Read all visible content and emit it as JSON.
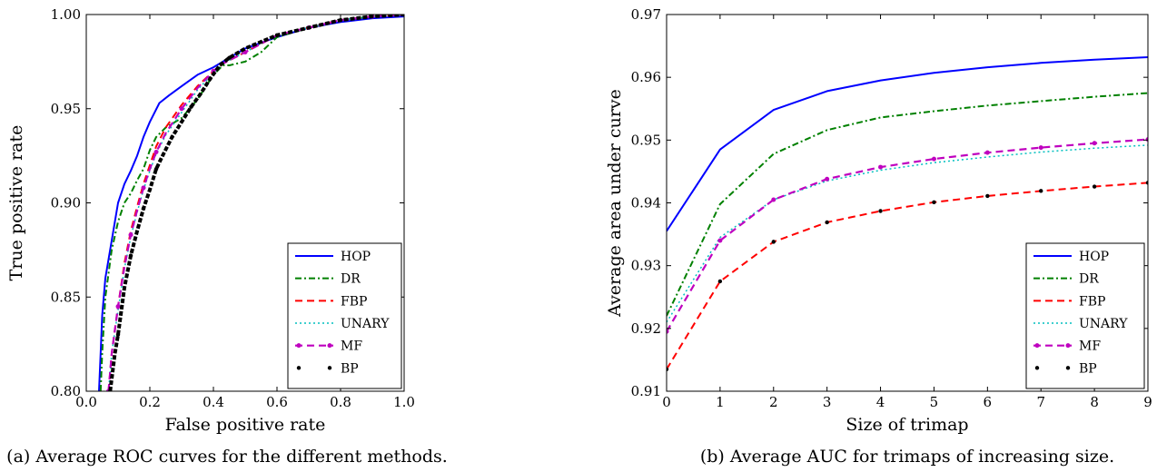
{
  "chart_data": [
    {
      "type": "line",
      "caption": "(a) Average ROC curves for the different methods.",
      "xlabel": "False positive rate",
      "ylabel": "True positive rate",
      "xlim": [
        0.0,
        1.0
      ],
      "ylim": [
        0.8,
        1.0
      ],
      "xticks": [
        "0.0",
        "0.2",
        "0.4",
        "0.6",
        "0.8",
        "1.0"
      ],
      "yticks": [
        "0.80",
        "0.85",
        "0.90",
        "0.95",
        "1.00"
      ],
      "xtick_values": [
        0.0,
        0.2,
        0.4,
        0.6,
        0.8,
        1.0
      ],
      "ytick_values": [
        0.8,
        0.85,
        0.9,
        0.95,
        1.0
      ],
      "legend_position": "lower-right",
      "series": [
        {
          "name": "HOP",
          "color": "#0000ff",
          "style": "solid",
          "x": [
            0.04,
            0.045,
            0.05,
            0.06,
            0.08,
            0.1,
            0.12,
            0.14,
            0.16,
            0.18,
            0.2,
            0.23,
            0.26,
            0.3,
            0.35,
            0.4,
            0.43,
            0.5,
            0.55,
            0.6,
            0.7,
            0.8,
            0.9,
            1.0
          ],
          "y": [
            0.8,
            0.82,
            0.84,
            0.86,
            0.88,
            0.9,
            0.91,
            0.917,
            0.925,
            0.935,
            0.943,
            0.953,
            0.957,
            0.962,
            0.968,
            0.972,
            0.975,
            0.982,
            0.985,
            0.988,
            0.993,
            0.996,
            0.998,
            0.999
          ]
        },
        {
          "name": "DR",
          "color": "#008000",
          "style": "dashdot",
          "x": [
            0.045,
            0.05,
            0.06,
            0.08,
            0.1,
            0.12,
            0.14,
            0.16,
            0.18,
            0.2,
            0.22,
            0.25,
            0.3,
            0.35,
            0.4,
            0.43,
            0.45,
            0.5,
            0.55,
            0.6,
            0.7,
            0.8,
            0.9,
            1.0
          ],
          "y": [
            0.8,
            0.82,
            0.85,
            0.875,
            0.89,
            0.9,
            0.905,
            0.912,
            0.918,
            0.928,
            0.935,
            0.94,
            0.945,
            0.955,
            0.968,
            0.973,
            0.973,
            0.975,
            0.98,
            0.988,
            0.993,
            0.997,
            0.999,
            1.0
          ]
        },
        {
          "name": "FBP",
          "color": "#ff0000",
          "style": "dashed",
          "x": [
            0.07,
            0.08,
            0.1,
            0.12,
            0.14,
            0.16,
            0.18,
            0.2,
            0.22,
            0.25,
            0.3,
            0.35,
            0.4,
            0.43,
            0.5,
            0.6,
            0.7,
            0.8,
            0.9,
            1.0
          ],
          "y": [
            0.8,
            0.82,
            0.845,
            0.868,
            0.885,
            0.898,
            0.91,
            0.92,
            0.93,
            0.94,
            0.952,
            0.962,
            0.97,
            0.974,
            0.98,
            0.989,
            0.993,
            0.997,
            0.999,
            1.0
          ]
        },
        {
          "name": "UNARY",
          "color": "#00bfbf",
          "style": "dotted",
          "x": [
            0.07,
            0.08,
            0.1,
            0.12,
            0.14,
            0.16,
            0.18,
            0.2,
            0.22,
            0.25,
            0.3,
            0.35,
            0.4,
            0.43,
            0.5,
            0.6,
            0.7,
            0.8,
            0.9,
            1.0
          ],
          "y": [
            0.8,
            0.82,
            0.843,
            0.865,
            0.882,
            0.895,
            0.907,
            0.917,
            0.926,
            0.936,
            0.948,
            0.96,
            0.969,
            0.974,
            0.98,
            0.989,
            0.993,
            0.997,
            0.999,
            1.0
          ]
        },
        {
          "name": "MF",
          "color": "#bf00bf",
          "style": "dashed-marker",
          "x": [
            0.07,
            0.08,
            0.1,
            0.12,
            0.14,
            0.16,
            0.18,
            0.2,
            0.22,
            0.25,
            0.3,
            0.35,
            0.4,
            0.43,
            0.5,
            0.6,
            0.7,
            0.8,
            0.9,
            1.0
          ],
          "y": [
            0.8,
            0.82,
            0.845,
            0.866,
            0.883,
            0.896,
            0.908,
            0.918,
            0.927,
            0.937,
            0.95,
            0.961,
            0.97,
            0.974,
            0.98,
            0.989,
            0.993,
            0.997,
            0.999,
            1.0
          ]
        },
        {
          "name": "BP",
          "color": "#000000",
          "style": "dot-marker",
          "x": [
            0.075,
            0.09,
            0.1,
            0.12,
            0.14,
            0.16,
            0.18,
            0.2,
            0.22,
            0.24,
            0.27,
            0.3,
            0.33,
            0.36,
            0.39,
            0.42,
            0.45,
            0.5,
            0.6,
            0.7,
            0.8,
            0.9,
            1.0
          ],
          "y": [
            0.8,
            0.82,
            0.83,
            0.855,
            0.872,
            0.885,
            0.897,
            0.907,
            0.918,
            0.925,
            0.935,
            0.943,
            0.951,
            0.958,
            0.966,
            0.973,
            0.977,
            0.982,
            0.989,
            0.993,
            0.997,
            0.999,
            1.0
          ]
        }
      ]
    },
    {
      "type": "line",
      "caption": "(b) Average AUC for trimaps of increasing size.",
      "xlabel": "Size of trimap",
      "ylabel": "Average area under curve",
      "xlim": [
        0,
        9
      ],
      "ylim": [
        0.91,
        0.97
      ],
      "xticks": [
        "0",
        "1",
        "2",
        "3",
        "4",
        "5",
        "6",
        "7",
        "8",
        "9"
      ],
      "yticks": [
        "0.91",
        "0.92",
        "0.93",
        "0.94",
        "0.95",
        "0.96",
        "0.97"
      ],
      "xtick_values": [
        0,
        1,
        2,
        3,
        4,
        5,
        6,
        7,
        8,
        9
      ],
      "ytick_values": [
        0.91,
        0.92,
        0.93,
        0.94,
        0.95,
        0.96,
        0.97
      ],
      "legend_position": "lower-right",
      "x": [
        0,
        1,
        2,
        3,
        4,
        5,
        6,
        7,
        8,
        9
      ],
      "series": [
        {
          "name": "HOP",
          "color": "#0000ff",
          "style": "solid",
          "values": [
            0.9355,
            0.9485,
            0.9548,
            0.9578,
            0.9595,
            0.9607,
            0.9616,
            0.9623,
            0.9628,
            0.9632
          ]
        },
        {
          "name": "DR",
          "color": "#008000",
          "style": "dashdot",
          "values": [
            0.922,
            0.9398,
            0.9478,
            0.9516,
            0.9536,
            0.9546,
            0.9555,
            0.9562,
            0.9569,
            0.9575
          ]
        },
        {
          "name": "FBP",
          "color": "#ff0000",
          "style": "dashed",
          "values": [
            0.9135,
            0.9275,
            0.9338,
            0.9369,
            0.9387,
            0.9401,
            0.9411,
            0.9419,
            0.9426,
            0.9432
          ]
        },
        {
          "name": "UNARY",
          "color": "#00bfbf",
          "style": "dotted",
          "values": [
            0.921,
            0.9345,
            0.9405,
            0.9435,
            0.9452,
            0.9464,
            0.9473,
            0.9481,
            0.9487,
            0.9492
          ]
        },
        {
          "name": "MF",
          "color": "#bf00bf",
          "style": "dashed-marker",
          "values": [
            0.9195,
            0.934,
            0.9405,
            0.9438,
            0.9457,
            0.947,
            0.948,
            0.9488,
            0.9495,
            0.9501
          ]
        },
        {
          "name": "BP",
          "color": "#000000",
          "style": "dot-marker",
          "values": [
            0.9135,
            0.9275,
            0.9338,
            0.9369,
            0.9387,
            0.9401,
            0.9411,
            0.9419,
            0.9426,
            0.9432
          ]
        }
      ]
    }
  ]
}
